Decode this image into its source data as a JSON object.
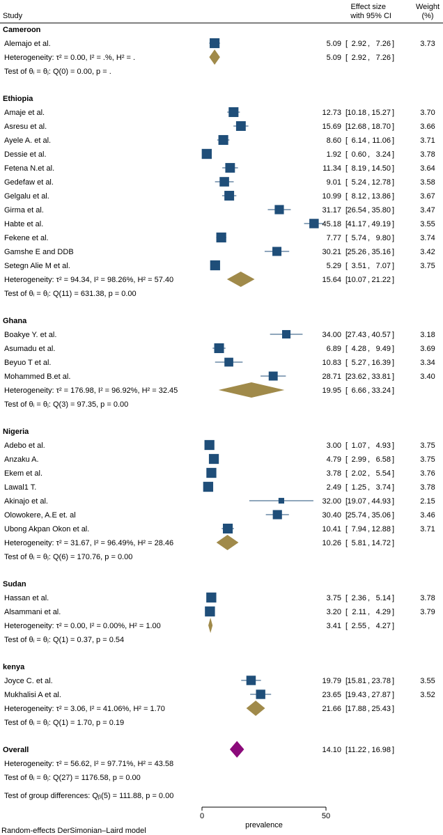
{
  "colors": {
    "study": "#1f4e79",
    "subgroup": "#a08a4a",
    "overall": "#8b0a7a",
    "line": "#000000"
  },
  "header": {
    "study": "Study",
    "effect_line1": "Effect size",
    "effect_line2": "with 95% CI",
    "weight_line1": "Weight",
    "weight_line2": "(%)"
  },
  "chart_data": {
    "type": "forest",
    "xlabel": "prevalence",
    "xlim": [
      0,
      50
    ],
    "xticks": [
      0,
      50
    ],
    "footnote": "Random-effects DerSimonian–Laird model",
    "groups": [
      {
        "name": "Cameroon",
        "studies": [
          {
            "label": "Alemajo et al.",
            "est": 5.09,
            "lo": 2.92,
            "hi": 7.26,
            "est_text": "5.09",
            "lo_text": "2.92",
            "hi_text": "7.26",
            "weight": "3.73"
          }
        ],
        "summary": {
          "label": "Heterogeneity: τ² = 0.00, I² = .%, H² = .",
          "est": 5.09,
          "lo": 2.92,
          "hi": 7.26,
          "est_text": "5.09",
          "lo_text": "2.92",
          "hi_text": "7.26"
        },
        "test": "Test of θᵢ = θⱼ: Q(0) = 0.00, p = ."
      },
      {
        "name": "Ethiopia",
        "studies": [
          {
            "label": "Amaje et al.",
            "est": 12.73,
            "lo": 10.18,
            "hi": 15.27,
            "est_text": "12.73",
            "lo_text": "10.18",
            "hi_text": "15.27",
            "weight": "3.70"
          },
          {
            "label": "Asresu et al.",
            "est": 15.69,
            "lo": 12.68,
            "hi": 18.7,
            "est_text": "15.69",
            "lo_text": "12.68",
            "hi_text": "18.70",
            "weight": "3.66"
          },
          {
            "label": "Ayele A. et al.",
            "est": 8.6,
            "lo": 6.14,
            "hi": 11.06,
            "est_text": "8.60",
            "lo_text": "6.14",
            "hi_text": "11.06",
            "weight": "3.71"
          },
          {
            "label": "Dessie et al.",
            "est": 1.92,
            "lo": 0.6,
            "hi": 3.24,
            "est_text": "1.92",
            "lo_text": "0.60",
            "hi_text": "3.24",
            "weight": "3.78"
          },
          {
            "label": "Fetena N.et al.",
            "est": 11.34,
            "lo": 8.19,
            "hi": 14.5,
            "est_text": "11.34",
            "lo_text": "8.19",
            "hi_text": "14.50",
            "weight": "3.64"
          },
          {
            "label": "Gedefaw et al.",
            "est": 9.01,
            "lo": 5.24,
            "hi": 12.78,
            "est_text": "9.01",
            "lo_text": "5.24",
            "hi_text": "12.78",
            "weight": "3.58"
          },
          {
            "label": "Gelgalu et al.",
            "est": 10.99,
            "lo": 8.12,
            "hi": 13.86,
            "est_text": "10.99",
            "lo_text": "8.12",
            "hi_text": "13.86",
            "weight": "3.67"
          },
          {
            "label": "Girma et al.",
            "est": 31.17,
            "lo": 26.54,
            "hi": 35.8,
            "est_text": "31.17",
            "lo_text": "26.54",
            "hi_text": "35.80",
            "weight": "3.47"
          },
          {
            "label": "Habte et al.",
            "est": 45.18,
            "lo": 41.17,
            "hi": 49.19,
            "est_text": "45.18",
            "lo_text": "41.17",
            "hi_text": "49.19",
            "weight": "3.55"
          },
          {
            "label": "Fekene et al.",
            "est": 7.77,
            "lo": 5.74,
            "hi": 9.8,
            "est_text": "7.77",
            "lo_text": "5.74",
            "hi_text": "9.80",
            "weight": "3.74"
          },
          {
            "label": "Gamshe E and DDB",
            "est": 30.21,
            "lo": 25.26,
            "hi": 35.16,
            "est_text": "30.21",
            "lo_text": "25.26",
            "hi_text": "35.16",
            "weight": "3.42"
          },
          {
            "label": "Setegn Alie M et al.",
            "est": 5.29,
            "lo": 3.51,
            "hi": 7.07,
            "est_text": "5.29",
            "lo_text": "3.51",
            "hi_text": "7.07",
            "weight": "3.75"
          }
        ],
        "summary": {
          "label": "Heterogeneity: τ² = 94.34, I² = 98.26%, H² = 57.40",
          "est": 15.64,
          "lo": 10.07,
          "hi": 21.22,
          "est_text": "15.64",
          "lo_text": "10.07",
          "hi_text": "21.22"
        },
        "test": "Test of θᵢ = θⱼ: Q(11) = 631.38, p = 0.00"
      },
      {
        "name": "Ghana",
        "studies": [
          {
            "label": "Boakye Y. et al.",
            "est": 34.0,
            "lo": 27.43,
            "hi": 40.57,
            "est_text": "34.00",
            "lo_text": "27.43",
            "hi_text": "40.57",
            "weight": "3.18"
          },
          {
            "label": "Asumadu et al.",
            "est": 6.89,
            "lo": 4.28,
            "hi": 9.49,
            "est_text": "6.89",
            "lo_text": "4.28",
            "hi_text": "9.49",
            "weight": "3.69"
          },
          {
            "label": "Beyuo T et al.",
            "est": 10.83,
            "lo": 5.27,
            "hi": 16.39,
            "est_text": "10.83",
            "lo_text": "5.27",
            "hi_text": "16.39",
            "weight": "3.34"
          },
          {
            "label": "Mohammed B.et al.",
            "est": 28.71,
            "lo": 23.62,
            "hi": 33.81,
            "est_text": "28.71",
            "lo_text": "23.62",
            "hi_text": "33.81",
            "weight": "3.40"
          }
        ],
        "summary": {
          "label": "Heterogeneity: τ² = 176.98, I² = 96.92%, H² = 32.45",
          "est": 19.95,
          "lo": 6.66,
          "hi": 33.24,
          "est_text": "19.95",
          "lo_text": "6.66",
          "hi_text": "33.24"
        },
        "test": "Test of θᵢ = θⱼ: Q(3) = 97.35, p = 0.00"
      },
      {
        "name": "Nigeria",
        "studies": [
          {
            "label": "Adebo et al.",
            "est": 3.0,
            "lo": 1.07,
            "hi": 4.93,
            "est_text": "3.00",
            "lo_text": "1.07",
            "hi_text": "4.93",
            "weight": "3.75"
          },
          {
            "label": "Anzaku A.",
            "est": 4.79,
            "lo": 2.99,
            "hi": 6.58,
            "est_text": "4.79",
            "lo_text": "2.99",
            "hi_text": "6.58",
            "weight": "3.75"
          },
          {
            "label": "Ekem et al.",
            "est": 3.78,
            "lo": 2.02,
            "hi": 5.54,
            "est_text": "3.78",
            "lo_text": "2.02",
            "hi_text": "5.54",
            "weight": "3.76"
          },
          {
            "label": "Lawal1 T.",
            "est": 2.49,
            "lo": 1.25,
            "hi": 3.74,
            "est_text": "2.49",
            "lo_text": "1.25",
            "hi_text": "3.74",
            "weight": "3.78"
          },
          {
            "label": "Akinajo et al.",
            "est": 32.0,
            "lo": 19.07,
            "hi": 44.93,
            "est_text": "32.00",
            "lo_text": "19.07",
            "hi_text": "44.93",
            "weight": "2.15"
          },
          {
            "label": "Olowokere, A.E et. al",
            "est": 30.4,
            "lo": 25.74,
            "hi": 35.06,
            "est_text": "30.40",
            "lo_text": "25.74",
            "hi_text": "35.06",
            "weight": "3.46"
          },
          {
            "label": "Ubong Akpan Okon et al.",
            "est": 10.41,
            "lo": 7.94,
            "hi": 12.88,
            "est_text": "10.41",
            "lo_text": "7.94",
            "hi_text": "12.88",
            "weight": "3.71"
          }
        ],
        "summary": {
          "label": "Heterogeneity: τ² = 31.67, I² = 96.49%, H² = 28.46",
          "est": 10.26,
          "lo": 5.81,
          "hi": 14.72,
          "est_text": "10.26",
          "lo_text": "5.81",
          "hi_text": "14.72"
        },
        "test": "Test of θᵢ = θⱼ: Q(6) = 170.76, p = 0.00"
      },
      {
        "name": "Sudan",
        "studies": [
          {
            "label": "Hassan et al.",
            "est": 3.75,
            "lo": 2.36,
            "hi": 5.14,
            "est_text": "3.75",
            "lo_text": "2.36",
            "hi_text": "5.14",
            "weight": "3.78"
          },
          {
            "label": "Alsammani et al.",
            "est": 3.2,
            "lo": 2.11,
            "hi": 4.29,
            "est_text": "3.20",
            "lo_text": "2.11",
            "hi_text": "4.29",
            "weight": "3.79"
          }
        ],
        "summary": {
          "label": "Heterogeneity: τ² = 0.00, I² = 0.00%, H² = 1.00",
          "est": 3.41,
          "lo": 2.55,
          "hi": 4.27,
          "est_text": "3.41",
          "lo_text": "2.55",
          "hi_text": "4.27"
        },
        "test": "Test of θᵢ = θⱼ: Q(1) = 0.37, p = 0.54"
      },
      {
        "name": "kenya",
        "studies": [
          {
            "label": "Joyce C. et al.",
            "est": 19.79,
            "lo": 15.81,
            "hi": 23.78,
            "est_text": "19.79",
            "lo_text": "15.81",
            "hi_text": "23.78",
            "weight": "3.55"
          },
          {
            "label": "Mukhalisi A et al.",
            "est": 23.65,
            "lo": 19.43,
            "hi": 27.87,
            "est_text": "23.65",
            "lo_text": "19.43",
            "hi_text": "27.87",
            "weight": "3.52"
          }
        ],
        "summary": {
          "label": "Heterogeneity: τ² = 3.06, I² = 41.06%, H² = 1.70",
          "est": 21.66,
          "lo": 17.88,
          "hi": 25.43,
          "est_text": "21.66",
          "lo_text": "17.88",
          "hi_text": "25.43"
        },
        "test": "Test of θᵢ = θⱼ: Q(1) = 1.70, p = 0.19"
      }
    ],
    "overall": {
      "name": "Overall",
      "est": 14.1,
      "lo": 11.22,
      "hi": 16.98,
      "est_text": "14.10",
      "lo_text": "11.22",
      "hi_text": "16.98",
      "heterogeneity": "Heterogeneity: τ² = 56.62, I² = 97.71%, H² = 43.58",
      "test": "Test of θᵢ = θⱼ: Q(27) = 1176.58, p = 0.00",
      "group_test": "Test of group differences: Qᵦ(5) = 111.88, p = 0.00"
    }
  }
}
